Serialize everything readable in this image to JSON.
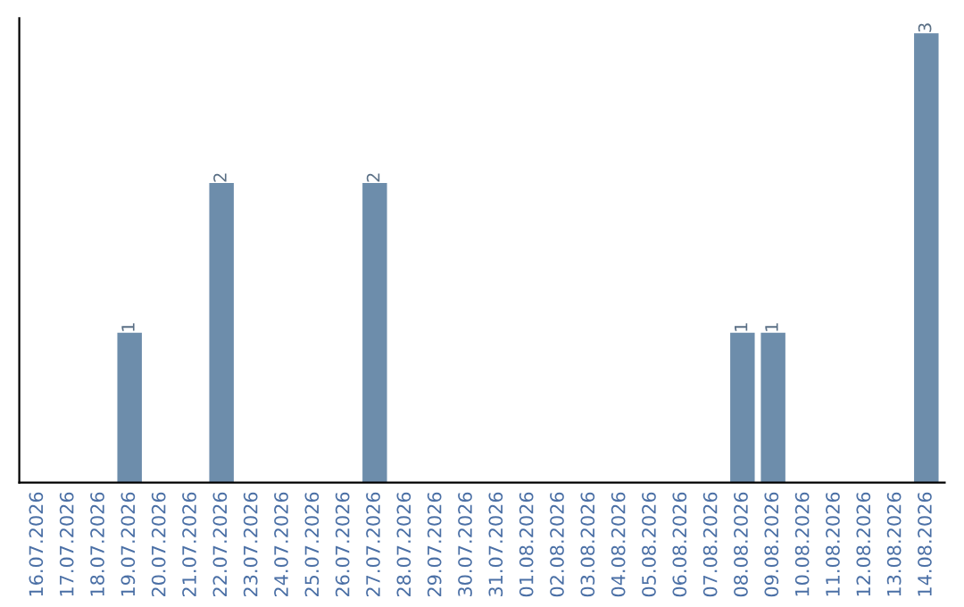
{
  "chart_data": {
    "type": "bar",
    "categories": [
      "16.07.2026",
      "17.07.2026",
      "18.07.2026",
      "19.07.2026",
      "20.07.2026",
      "21.07.2026",
      "22.07.2026",
      "23.07.2026",
      "24.07.2026",
      "25.07.2026",
      "26.07.2026",
      "27.07.2026",
      "28.07.2026",
      "29.07.2026",
      "30.07.2026",
      "31.07.2026",
      "01.08.2026",
      "02.08.2026",
      "03.08.2026",
      "04.08.2026",
      "05.08.2026",
      "06.08.2026",
      "07.08.2026",
      "08.08.2026",
      "09.08.2026",
      "10.08.2026",
      "11.08.2026",
      "12.08.2026",
      "13.08.2026",
      "14.08.2026"
    ],
    "values": [
      0,
      0,
      0,
      1,
      0,
      0,
      2,
      0,
      0,
      0,
      0,
      2,
      0,
      0,
      0,
      0,
      0,
      0,
      0,
      0,
      0,
      0,
      0,
      1,
      1,
      0,
      0,
      0,
      0,
      3
    ],
    "value_labels": [
      null,
      null,
      null,
      "1",
      null,
      null,
      "2",
      null,
      null,
      null,
      null,
      "2",
      null,
      null,
      null,
      null,
      null,
      null,
      null,
      null,
      null,
      null,
      null,
      "1",
      "1",
      null,
      null,
      null,
      null,
      "3"
    ],
    "color": "#6d8dab",
    "ylim": [
      0,
      3.1
    ],
    "tick_labels": "x",
    "grid": false,
    "legend": false
  }
}
